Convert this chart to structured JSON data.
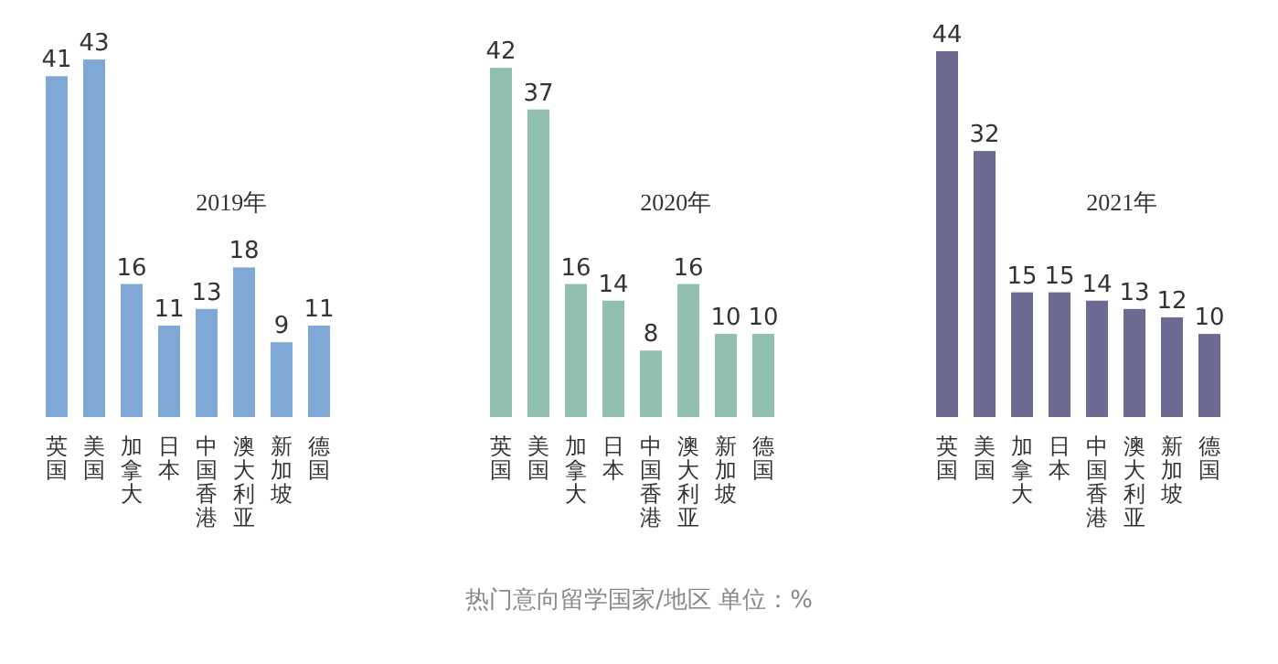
{
  "chart_data": [
    {
      "type": "bar",
      "title": "2019年",
      "categories": [
        "英国",
        "美国",
        "加拿大",
        "日本",
        "中国香港",
        "澳大利亚",
        "新加坡",
        "德国"
      ],
      "values": [
        41,
        43,
        16,
        11,
        13,
        18,
        9,
        11
      ],
      "color": "#7fa8d6",
      "data_labels": true
    },
    {
      "type": "bar",
      "title": "2020年",
      "categories": [
        "英国",
        "美国",
        "加拿大",
        "日本",
        "中国香港",
        "澳大利亚",
        "新加坡",
        "德国"
      ],
      "values": [
        42,
        37,
        16,
        14,
        8,
        16,
        10,
        10
      ],
      "color": "#90bfae",
      "data_labels": true,
      "annotations": [
        "热门意向留学国家/地区 单位：%"
      ]
    },
    {
      "type": "bar",
      "title": "2021年",
      "categories": [
        "英国",
        "美国",
        "加拿大",
        "日本",
        "中国香港",
        "澳大利亚",
        "新加坡",
        "德国"
      ],
      "values": [
        44,
        32,
        15,
        15,
        14,
        13,
        12,
        10
      ],
      "color": "#6d6a92",
      "data_labels": true
    }
  ]
}
